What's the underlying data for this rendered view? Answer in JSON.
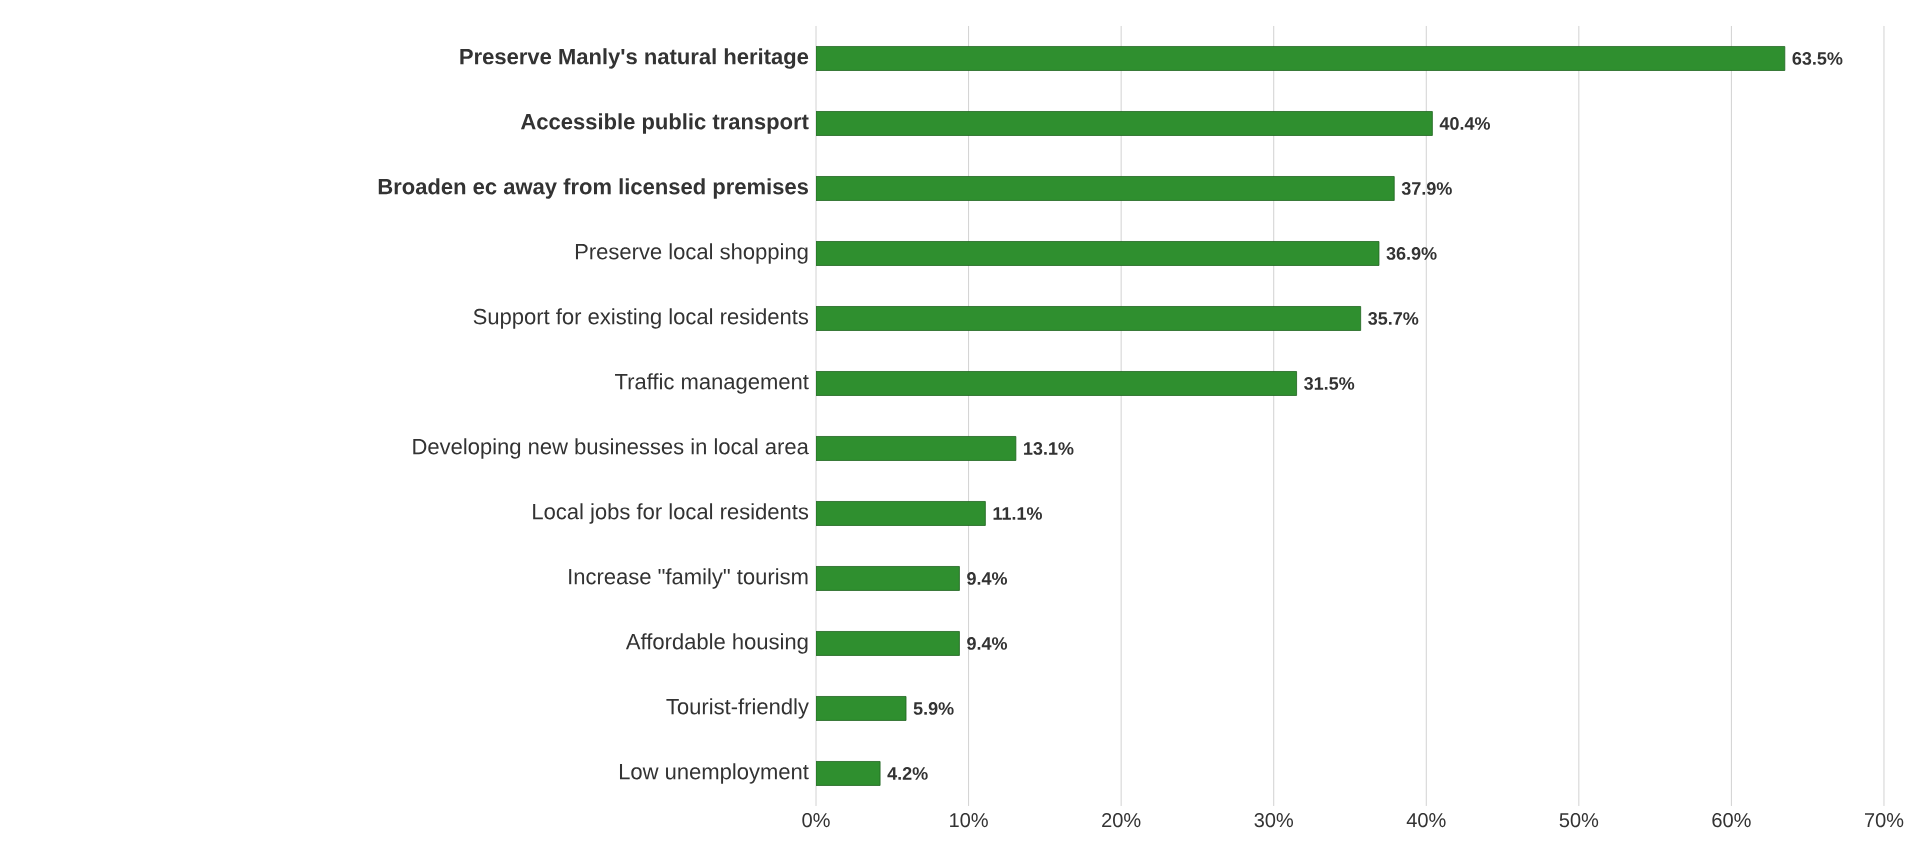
{
  "chart_data": {
    "type": "bar",
    "orientation": "horizontal",
    "categories": [
      "**Preserve Manly's natural heritage**",
      "**Accessible public transport**",
      "**Broaden ec away from licensed premises**",
      "Preserve local shopping",
      "Support for existing local residents",
      "Traffic management",
      "Developing new businesses in local area",
      "Local jobs for local residents",
      "Increase \"family\" tourism",
      "Affordable housing",
      "Tourist-friendly",
      "Low unemployment"
    ],
    "values": [
      63.5,
      40.4,
      37.9,
      36.9,
      35.7,
      31.5,
      13.1,
      11.1,
      9.4,
      9.4,
      5.9,
      4.2
    ],
    "value_labels": [
      "63.5%",
      "40.4%",
      "37.9%",
      "36.9%",
      "35.7%",
      "31.5%",
      "13.1%",
      "11.1%",
      "9.4%",
      "9.4%",
      "5.9%",
      "4.2%"
    ],
    "color": "#2f8f2f",
    "xlim": [
      0,
      70
    ],
    "xticks": [
      {
        "value": 0,
        "label": "0%"
      },
      {
        "value": 10,
        "label": "10%"
      },
      {
        "value": 20,
        "label": "20%"
      },
      {
        "value": 30,
        "label": "30%"
      },
      {
        "value": 40,
        "label": "40%"
      },
      {
        "value": 50,
        "label": "50%"
      },
      {
        "value": 60,
        "label": "60%"
      },
      {
        "value": 70,
        "label": "70%"
      }
    ],
    "grid": "x"
  }
}
